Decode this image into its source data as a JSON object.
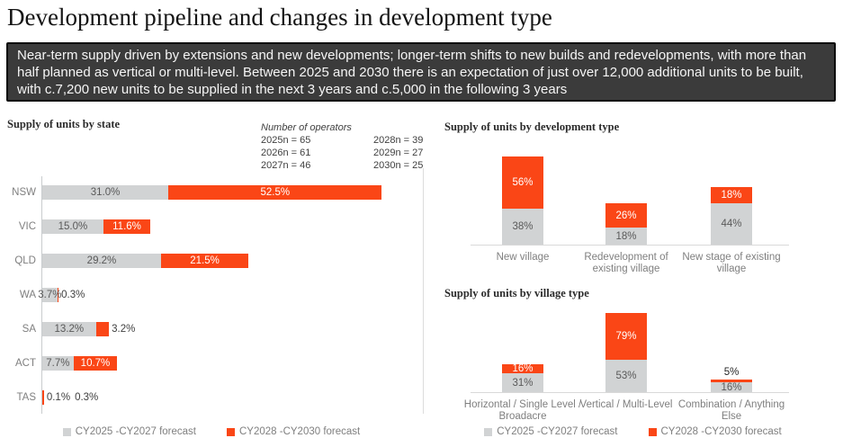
{
  "header": {
    "title": "Development pipeline and changes in development type",
    "banner": "Near-term supply driven by extensions and new developments; longer-term shifts to new builds and redevelopments, with more than half planned as vertical or multi-level. Between 2025 and 2030 there is an expectation of just over 12,000 additional units to be built, with c.7,200 new units to be supplied in the next 3 years and c.5,000 in the following 3 years"
  },
  "operators": {
    "title": "Number of operators",
    "col1": [
      "2025n = 65",
      "2026n = 61",
      "2027n = 46"
    ],
    "col2": [
      "2028n = 39",
      "2029n = 27",
      "2030n = 25"
    ]
  },
  "legend": {
    "series1": "CY2025 -CY2027 forecast",
    "series2": "CY2028 -CY2030 forecast"
  },
  "colors": {
    "near_term_gray": "#D1D3D4",
    "long_term_orange": "#FA4616",
    "label_dark": "#595959",
    "label_black": "#404040",
    "category_gray": "#7f7f7f"
  },
  "chart_data": [
    {
      "id": "state",
      "type": "bar",
      "orientation": "horizontal-stacked",
      "title": "Supply of units by state",
      "unit": "percent",
      "categories": [
        "NSW",
        "VIC",
        "QLD",
        "WA",
        "SA",
        "ACT",
        "TAS"
      ],
      "series": [
        {
          "name": "CY2025 -CY2027 forecast",
          "values": [
            31.0,
            15.0,
            29.2,
            3.7,
            13.2,
            7.7,
            0.1
          ]
        },
        {
          "name": "CY2028 -CY2030 forecast",
          "values": [
            52.5,
            11.6,
            21.5,
            0.3,
            3.2,
            10.7,
            0.3
          ]
        }
      ],
      "labels": [
        [
          "31.0%",
          "15.0%",
          "29.2%",
          "3.7%",
          "13.2%",
          "7.7%",
          "0.1%"
        ],
        [
          "52.5%",
          "11.6%",
          "21.5%",
          "0.3%",
          "3.2%",
          "10.7%",
          "0.3%"
        ]
      ],
      "legend_position": "bottom",
      "grid": false
    },
    {
      "id": "development",
      "type": "bar",
      "orientation": "vertical-stacked",
      "title": "Supply of units by development type",
      "unit": "percent",
      "categories": [
        "New village",
        "Redevelopment of existing village",
        "New stage of existing village"
      ],
      "series": [
        {
          "name": "CY2025 -CY2027 forecast",
          "values": [
            38,
            18,
            44
          ]
        },
        {
          "name": "CY2028 -CY2030 forecast",
          "values": [
            56,
            26,
            18
          ]
        }
      ],
      "labels": [
        [
          "38%",
          "18%",
          "44%"
        ],
        [
          "56%",
          "26%",
          "18%"
        ]
      ],
      "legend_position": "none",
      "grid": false
    },
    {
      "id": "village",
      "type": "bar",
      "orientation": "vertical-stacked",
      "title": "Supply of units by village type",
      "unit": "percent",
      "categories": [
        "Horizontal / Single Level / Broadacre",
        "Vertical / Multi-Level",
        "Combination / Anything Else"
      ],
      "series": [
        {
          "name": "CY2025 -CY2027 forecast",
          "values": [
            31,
            53,
            16
          ]
        },
        {
          "name": "CY2028 -CY2030 forecast",
          "values": [
            16,
            79,
            5
          ]
        }
      ],
      "labels": [
        [
          "31%",
          "53%",
          "16%"
        ],
        [
          "16%",
          "79%",
          "5%"
        ]
      ],
      "legend_position": "bottom",
      "grid": false
    }
  ]
}
